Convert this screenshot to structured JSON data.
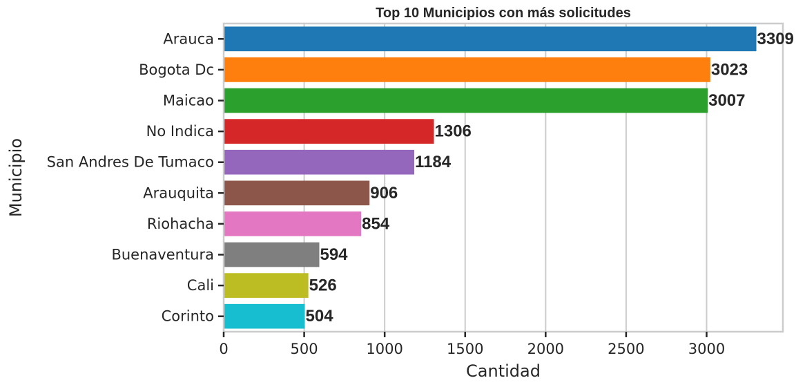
{
  "chart_data": {
    "type": "bar",
    "orientation": "horizontal",
    "title": "Top 10 Municipios con más solicitudes",
    "xlabel": "Cantidad",
    "ylabel": "Municipio",
    "categories": [
      "Arauca",
      "Bogota Dc",
      "Maicao",
      "No Indica",
      "San Andres De Tumaco",
      "Arauquita",
      "Riohacha",
      "Buenaventura",
      "Cali",
      "Corinto"
    ],
    "values": [
      3309,
      3023,
      3007,
      1306,
      1184,
      906,
      854,
      594,
      526,
      504
    ],
    "colors": [
      "#1f77b4",
      "#ff7f0e",
      "#2ca02c",
      "#d62728",
      "#9467bd",
      "#8c564b",
      "#e377c2",
      "#7f7f7f",
      "#bcbd22",
      "#17becf"
    ],
    "xlim": [
      0,
      3474
    ],
    "xticks": [
      0,
      500,
      1000,
      1500,
      2000,
      2500,
      3000
    ],
    "grid": "vertical",
    "data_labels": true
  }
}
